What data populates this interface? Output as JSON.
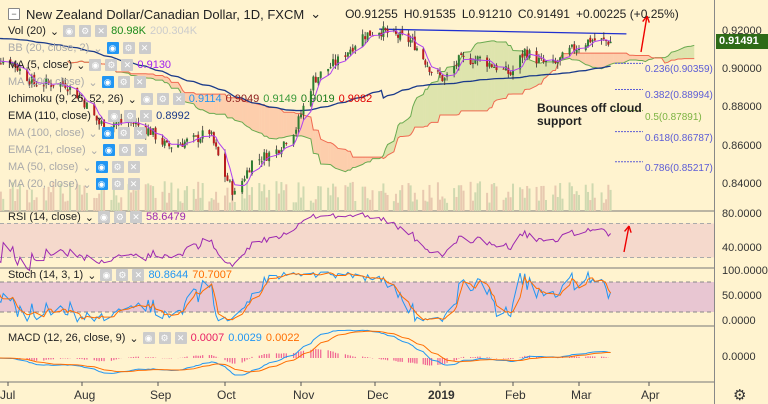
{
  "header": {
    "symbol": "New Zealand Dollar/Canadian Dollar, 1D, FXCM",
    "open": "O0.91255",
    "high": "H0.91535",
    "low": "L0.91210",
    "close": "C0.91491",
    "change": "+0.00225 (+0.25%)"
  },
  "indicators": [
    {
      "label": "Vol (20)",
      "values": [
        "80.98K",
        "200.304K"
      ],
      "colors": [
        "#1a8a1a",
        "#cccccc"
      ],
      "hidden": false
    },
    {
      "label": "BB (20, close, 2)",
      "values": [],
      "hidden": true
    },
    {
      "label": "MA (5, close)",
      "values": [
        "0.9130"
      ],
      "colors": [
        "#a020f0"
      ],
      "hidden": false
    },
    {
      "label": "MA (200, close)",
      "values": [],
      "hidden": true
    },
    {
      "label": "Ichimoku (9, 26, 52, 26)",
      "values": [
        "0.9114",
        "0.9049",
        "0.9149",
        "0.9019",
        "0.9082"
      ],
      "colors": [
        "#2196f3",
        "#8b1a1a",
        "#3a9a3a",
        "#1a7a1a",
        "#e00000"
      ],
      "hidden": false
    },
    {
      "label": "EMA (110, close)",
      "values": [
        "0.8992"
      ],
      "colors": [
        "#1a3a8a"
      ],
      "hidden": false
    },
    {
      "label": "MA (100, close)",
      "values": [],
      "hidden": true
    },
    {
      "label": "EMA (21, close)",
      "values": [],
      "hidden": true
    },
    {
      "label": "MA (50, close)",
      "values": [],
      "hidden": true
    },
    {
      "label": "MA (20, close)",
      "values": [],
      "hidden": true
    }
  ],
  "rsi": {
    "label": "RSI (14, close)",
    "value": "58.6479",
    "color": "#9c27b0"
  },
  "stoch": {
    "label": "Stoch (14, 3, 1)",
    "k": "80.8644",
    "d": "70.7007",
    "kcolor": "#2196f3",
    "dcolor": "#ff6d00"
  },
  "macd": {
    "label": "MACD (12, 26, close, 9)",
    "hist": "0.0007",
    "macd": "0.0029",
    "signal": "0.0022",
    "colors": [
      "#e91e63",
      "#2196f3",
      "#ff6d00"
    ]
  },
  "annotation": "Bounces off cloud support",
  "fibonacci": [
    {
      "label": "0.236(0.90359)",
      "level": 0.90359,
      "color": "#5c5cd6"
    },
    {
      "label": "0.382(0.88994)",
      "level": 0.88994,
      "color": "#5c5cd6"
    },
    {
      "label": "0.5(0.87891)",
      "level": 0.87891,
      "color": "#7cb342"
    },
    {
      "label": "0.618(0.86787)",
      "level": 0.86787,
      "color": "#5c5cd6"
    },
    {
      "label": "0.786(0.85217)",
      "level": 0.85217,
      "color": "#5c5cd6"
    }
  ],
  "current_price": "0.91491",
  "chart_data": {
    "type": "candlestick",
    "title": "New Zealand Dollar/Canadian Dollar, 1D, FXCM",
    "y_ticks": [
      "0.92000",
      "0.90000",
      "0.88000",
      "0.86000",
      "0.84000"
    ],
    "ylim": [
      0.825,
      0.9295
    ],
    "x_ticks": [
      "Jul",
      "Aug",
      "Sep",
      "Oct",
      "Nov",
      "Dec",
      "2019",
      "Feb",
      "Mar",
      "Apr"
    ],
    "rsi_ticks": [
      "80.0000",
      "40.0000"
    ],
    "stoch_ticks": [
      "100.0000",
      "50.0000",
      "0.0000"
    ],
    "macd_ticks": [
      "0.0000"
    ],
    "close_keypoints": [
      [
        "2018-07-02",
        0.905
      ],
      [
        "2018-07-12",
        0.893
      ],
      [
        "2018-07-25",
        0.893
      ],
      [
        "2018-08-01",
        0.885
      ],
      [
        "2018-08-08",
        0.872
      ],
      [
        "2018-08-21",
        0.873
      ],
      [
        "2018-08-29",
        0.868
      ],
      [
        "2018-09-05",
        0.86
      ],
      [
        "2018-09-18",
        0.864
      ],
      [
        "2018-09-24",
        0.868
      ],
      [
        "2018-10-01",
        0.845
      ],
      [
        "2018-10-05",
        0.835
      ],
      [
        "2018-10-12",
        0.852
      ],
      [
        "2018-10-22",
        0.858
      ],
      [
        "2018-10-30",
        0.87
      ],
      [
        "2018-11-06",
        0.895
      ],
      [
        "2018-11-16",
        0.905
      ],
      [
        "2018-11-26",
        0.918
      ],
      [
        "2018-12-03",
        0.921
      ],
      [
        "2018-12-11",
        0.918
      ],
      [
        "2018-12-19",
        0.915
      ],
      [
        "2018-12-28",
        0.9
      ],
      [
        "2019-01-03",
        0.895
      ],
      [
        "2019-01-09",
        0.905
      ],
      [
        "2019-01-18",
        0.906
      ],
      [
        "2019-01-31",
        0.898
      ],
      [
        "2019-02-06",
        0.91
      ],
      [
        "2019-02-13",
        0.904
      ],
      [
        "2019-02-19",
        0.903
      ],
      [
        "2019-02-25",
        0.91
      ],
      [
        "2019-03-06",
        0.916
      ],
      [
        "2019-03-15",
        0.91491
      ]
    ],
    "trendline": [
      [
        "2018-12-03",
        0.9215
      ],
      [
        "2019-03-22",
        0.919
      ]
    ]
  }
}
